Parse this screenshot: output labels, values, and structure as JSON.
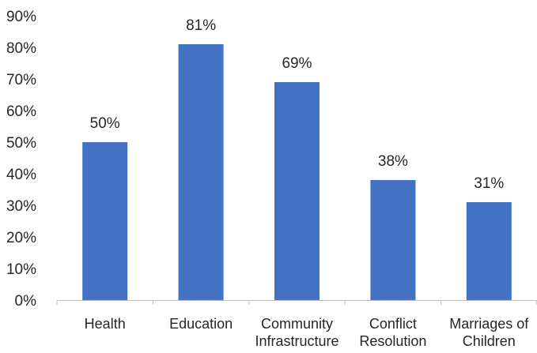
{
  "chart_data": {
    "type": "bar",
    "title": "",
    "xlabel": "",
    "ylabel": "",
    "categories": [
      [
        "Health"
      ],
      [
        "Education"
      ],
      [
        "Community",
        "Infrastructure"
      ],
      [
        "Conflict",
        "Resolution"
      ],
      [
        "Marriages of",
        "Children"
      ]
    ],
    "values": [
      50,
      81,
      69,
      38,
      31
    ],
    "data_labels": [
      "50%",
      "81%",
      "69%",
      "38%",
      "31%"
    ],
    "ylim": [
      0,
      90
    ],
    "yticks": [
      0,
      10,
      20,
      30,
      40,
      50,
      60,
      70,
      80,
      90
    ],
    "ytick_labels": [
      "0%",
      "10%",
      "20%",
      "30%",
      "40%",
      "50%",
      "60%",
      "70%",
      "80%",
      "90%"
    ],
    "grid": false,
    "legend": "none",
    "colors": {
      "bar": "#4472C4",
      "axis": "#BFBFBF",
      "text": "#262626"
    }
  }
}
